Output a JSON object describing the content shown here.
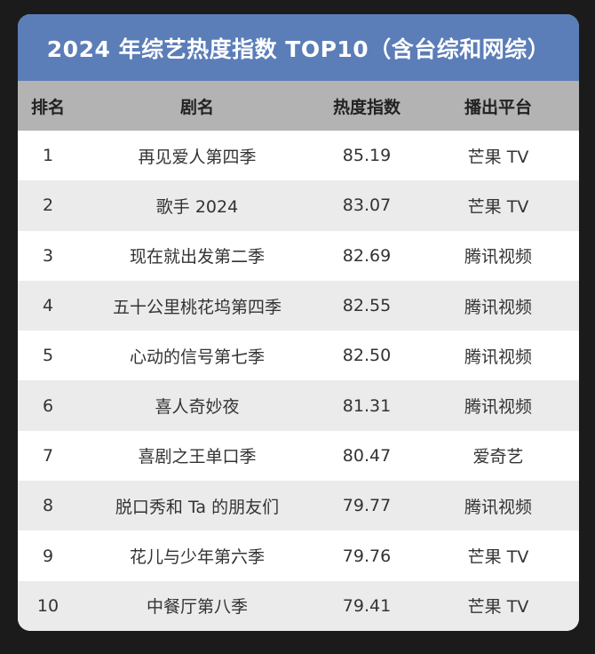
{
  "title": "2024 年综艺热度指数 TOP10（含台综和网综）",
  "colors": {
    "title_bg": "#5b7db8",
    "header_bg": "#b3b3b3",
    "row_alt_bg": "#ebebeb",
    "page_bg": "#1b1b1b"
  },
  "table": {
    "headers": [
      "排名",
      "剧名",
      "热度指数",
      "播出平台"
    ],
    "rows": [
      {
        "rank": "1",
        "name": "再见爱人第四季",
        "score": "85.19",
        "platform": "芒果 TV"
      },
      {
        "rank": "2",
        "name": "歌手 2024",
        "score": "83.07",
        "platform": "芒果 TV"
      },
      {
        "rank": "3",
        "name": "现在就出发第二季",
        "score": "82.69",
        "platform": "腾讯视频"
      },
      {
        "rank": "4",
        "name": "五十公里桃花坞第四季",
        "score": "82.55",
        "platform": "腾讯视频"
      },
      {
        "rank": "5",
        "name": "心动的信号第七季",
        "score": "82.50",
        "platform": "腾讯视频"
      },
      {
        "rank": "6",
        "name": "喜人奇妙夜",
        "score": "81.31",
        "platform": "腾讯视频"
      },
      {
        "rank": "7",
        "name": "喜剧之王单口季",
        "score": "80.47",
        "platform": "爱奇艺"
      },
      {
        "rank": "8",
        "name": "脱口秀和 Ta 的朋友们",
        "score": "79.77",
        "platform": "腾讯视频"
      },
      {
        "rank": "9",
        "name": "花儿与少年第六季",
        "score": "79.76",
        "platform": "芒果 TV"
      },
      {
        "rank": "10",
        "name": "中餐厅第八季",
        "score": "79.41",
        "platform": "芒果 TV"
      }
    ]
  }
}
